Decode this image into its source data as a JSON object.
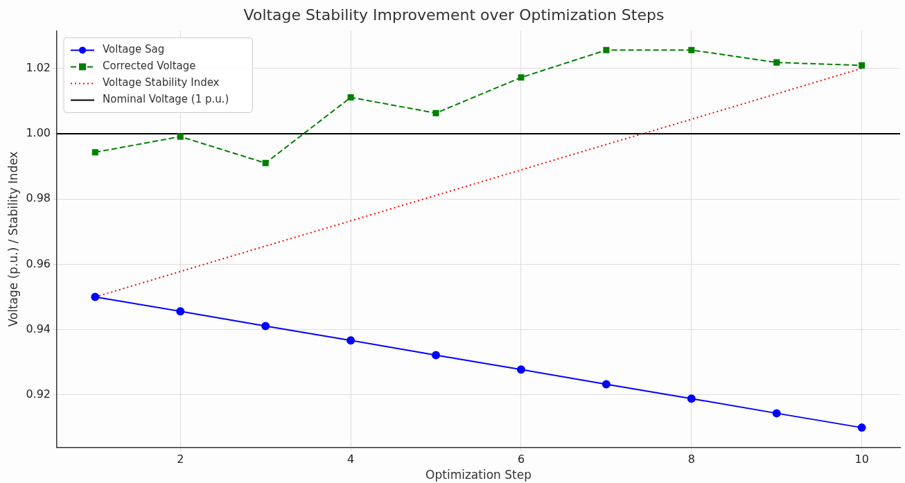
{
  "chart_data": {
    "type": "line",
    "title": "Voltage Stability Improvement over Optimization Steps",
    "xlabel": "Optimization Step",
    "ylabel": "Voltage (p.u.) / Stability Index",
    "x": [
      1,
      2,
      3,
      4,
      5,
      6,
      7,
      8,
      9,
      10
    ],
    "series": [
      {
        "name": "Voltage Sag",
        "color": "#0000ff",
        "marker": "circle",
        "line_style": "solid",
        "values": [
          0.95,
          0.9456,
          0.9411,
          0.9367,
          0.9322,
          0.9278,
          0.9233,
          0.9189,
          0.9144,
          0.91
        ]
      },
      {
        "name": "Corrected Voltage",
        "color": "#008000",
        "marker": "square",
        "line_style": "dashed",
        "values": [
          0.9943,
          0.9991,
          0.991,
          1.0111,
          1.0063,
          1.0172,
          1.0256,
          1.0256,
          1.0218,
          1.0209
        ]
      },
      {
        "name": "Voltage Stability Index",
        "color": "#ff0000",
        "marker": "none",
        "line_style": "dotted",
        "values": [
          0.95,
          0.9578,
          0.9656,
          0.9733,
          0.9811,
          0.9889,
          0.9967,
          1.0044,
          1.0122,
          1.02
        ]
      }
    ],
    "ref_lines": [
      {
        "axis": "y",
        "value": 1.0,
        "label": "Nominal Voltage (1 p.u.)",
        "color": "#000000",
        "line_style": "solid"
      }
    ],
    "xlim": [
      0.55,
      10.45
    ],
    "xticks": [
      2,
      4,
      6,
      8,
      10
    ],
    "ylim": [
      0.904,
      1.0315
    ],
    "yticks": [
      {
        "value": 0.92,
        "label": "0.92"
      },
      {
        "value": 0.94,
        "label": "0.94"
      },
      {
        "value": 0.96,
        "label": "0.96"
      },
      {
        "value": 0.98,
        "label": "0.98"
      },
      {
        "value": 1.0,
        "label": "1.00"
      },
      {
        "value": 1.02,
        "label": "1.02"
      }
    ],
    "grid": true,
    "legend": "top left"
  }
}
